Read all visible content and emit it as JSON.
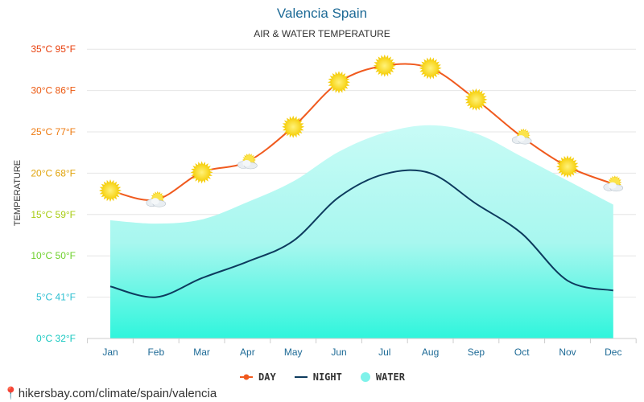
{
  "title": "Valencia Spain",
  "subtitle": "AIR & WATER TEMPERATURE",
  "footer": "hikersbay.com/climate/spain/valencia",
  "colors": {
    "day": "#f05a1e",
    "night": "#0d3b5e",
    "water": "#7ff2ea",
    "title": "#1d6a96"
  },
  "legend": [
    {
      "label": "DAY",
      "color": "#f05a1e",
      "icon": "line-dot"
    },
    {
      "label": "NIGHT",
      "color": "#0d3b5e",
      "icon": "line"
    },
    {
      "label": "WATER",
      "color": "#7ff2ea",
      "icon": "circle"
    }
  ],
  "chart_data": {
    "type": "line",
    "ylabel": "TEMPERATURE",
    "ylim": [
      0,
      35
    ],
    "yticks": [
      {
        "value": 0,
        "label": "0°C 32°F",
        "color": "#18c8c0"
      },
      {
        "value": 5,
        "label": "5°C 41°F",
        "color": "#2cbfd1"
      },
      {
        "value": 10,
        "label": "10°C 50°F",
        "color": "#6ed02b"
      },
      {
        "value": 15,
        "label": "15°C 59°F",
        "color": "#a8cc12"
      },
      {
        "value": 20,
        "label": "20°C 68°F",
        "color": "#e0a40e"
      },
      {
        "value": 25,
        "label": "25°C 77°F",
        "color": "#ee7a10"
      },
      {
        "value": 30,
        "label": "30°C 86°F",
        "color": "#ec5a12"
      },
      {
        "value": 35,
        "label": "35°C 95°F",
        "color": "#e8400e"
      }
    ],
    "categories": [
      "Jan",
      "Feb",
      "Mar",
      "Apr",
      "May",
      "Jun",
      "Jul",
      "Aug",
      "Sep",
      "Oct",
      "Nov",
      "Dec"
    ],
    "grid": true,
    "legend_position": "bottom-center",
    "series": [
      {
        "name": "DAY",
        "values": [
          17.9,
          16.8,
          20.1,
          21.4,
          25.6,
          31.0,
          33.0,
          32.7,
          28.9,
          24.4,
          20.8,
          18.7
        ],
        "weather_icons": [
          "sun",
          "partly-cloudy",
          "sun",
          "partly-cloudy",
          "sun",
          "sun",
          "sun",
          "sun",
          "sun",
          "partly-cloudy",
          "sun",
          "partly-cloudy"
        ]
      },
      {
        "name": "NIGHT",
        "values": [
          6.3,
          5.0,
          7.3,
          9.3,
          11.8,
          17.1,
          19.9,
          20.0,
          16.3,
          12.7,
          7.0,
          5.8
        ]
      },
      {
        "name": "WATER",
        "values": [
          14.3,
          13.9,
          14.4,
          16.5,
          19.0,
          22.6,
          24.9,
          25.8,
          24.8,
          22.0,
          19.1,
          16.2
        ]
      }
    ]
  }
}
